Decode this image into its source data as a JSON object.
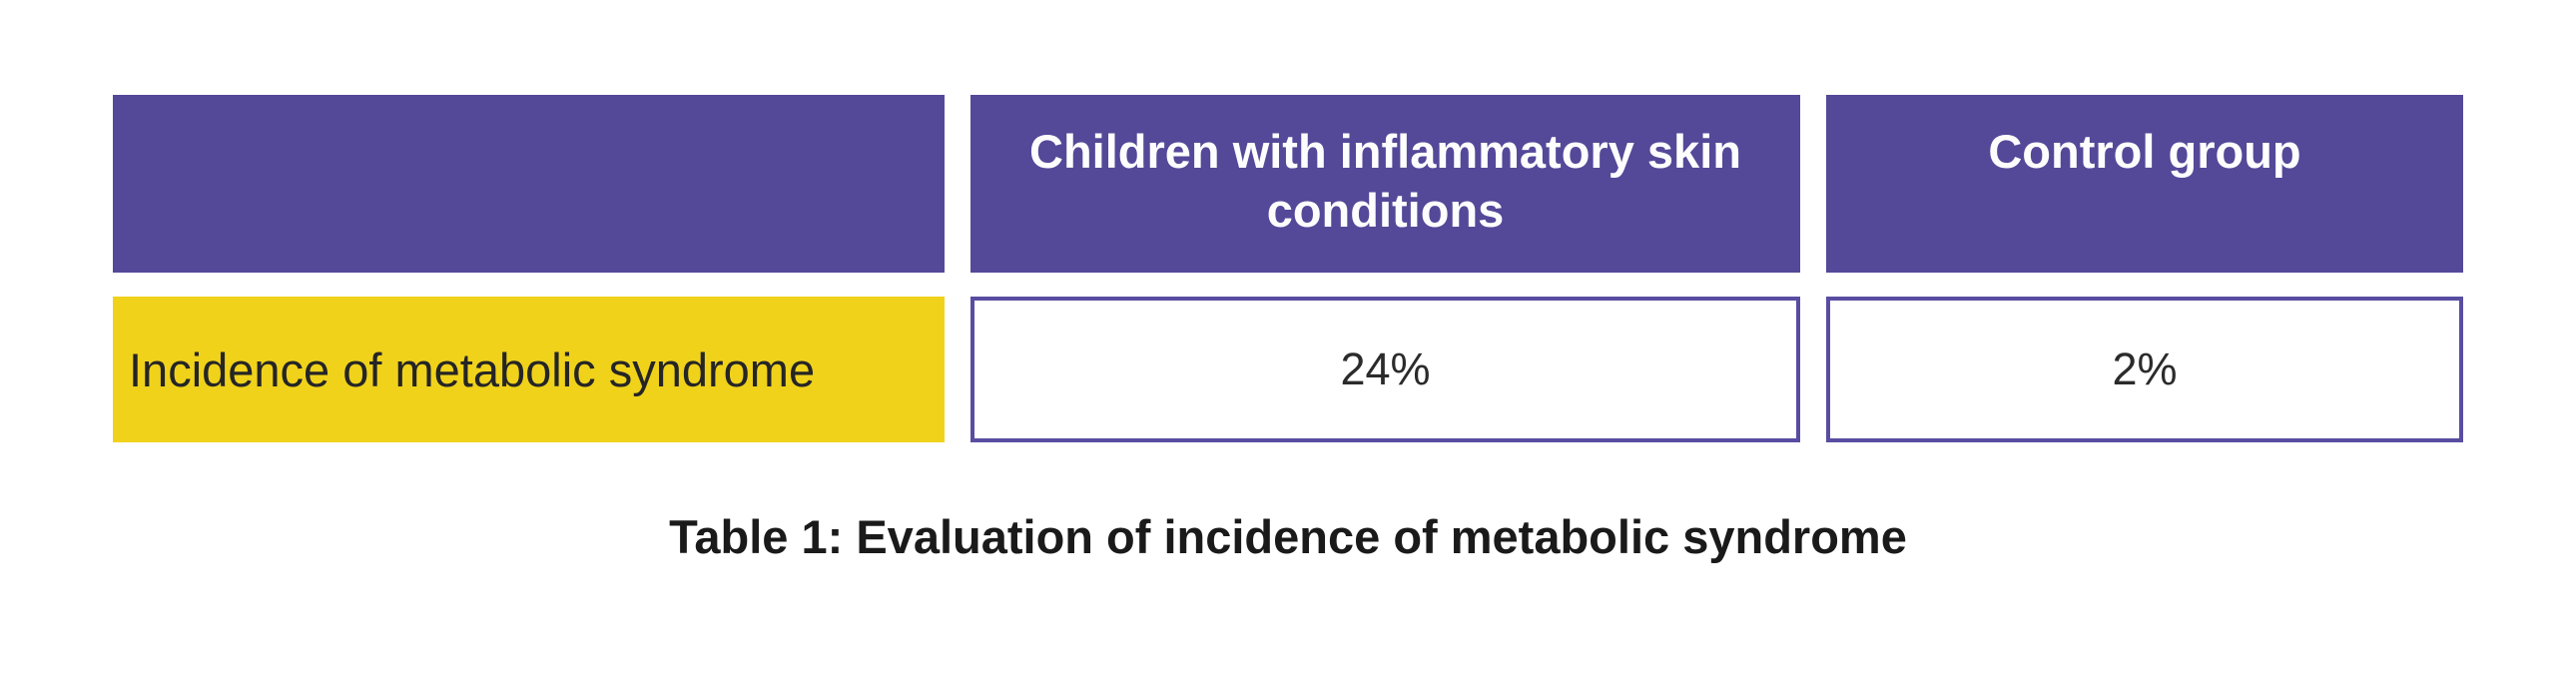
{
  "chart_data": {
    "type": "table",
    "title": "Table 1: Evaluation of incidence of metabolic syndrome",
    "columns": [
      "",
      "Children with inflammatory skin conditions",
      "Control group"
    ],
    "rows": [
      {
        "label": "Incidence of metabolic syndrome",
        "values": [
          "24%",
          "2%"
        ]
      }
    ],
    "units": "percent incidence",
    "layout": "header row on top, one data row, caption below"
  },
  "colors": {
    "header_background": "#544899",
    "header_text": "#fdfdfd",
    "row_label_background": "#f0d21b",
    "row_label_text": "#252525",
    "value_cell_background": "#ffffff",
    "value_cell_border": "#584da1",
    "value_text": "#2b2b2b",
    "caption_text": "#1a1a1a",
    "page_background": "#ffffff"
  }
}
